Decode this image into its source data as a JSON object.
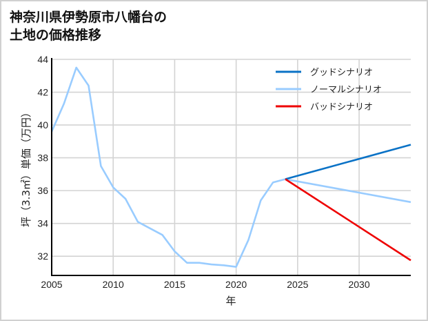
{
  "title": {
    "line1": "神奈川県伊勢原市八幡台の",
    "line2": "土地の価格推移"
  },
  "chart_data": {
    "type": "line",
    "title": "神奈川県伊勢原市八幡台の土地の価格推移",
    "xlabel": "年",
    "ylabel": "坪（3.3㎡）単価（万円）",
    "xlim": [
      2005,
      2034.2
    ],
    "ylim": [
      30.83,
      44
    ],
    "xticks": [
      2005,
      2010,
      2015,
      2020,
      2025,
      2030
    ],
    "yticks": [
      32,
      34,
      36,
      38,
      40,
      42,
      44
    ],
    "grid": true,
    "legend_position": "upper right",
    "series": [
      {
        "name": "ノーマルシナリオ",
        "role": "historical",
        "color": "#99ccff",
        "x": [
          2005,
          2006,
          2007,
          2008,
          2009,
          2010,
          2011,
          2012,
          2013,
          2014,
          2015,
          2016,
          2017,
          2018,
          2019,
          2020,
          2021,
          2022,
          2023,
          2024
        ],
        "values": [
          39.6,
          41.3,
          43.5,
          42.4,
          37.5,
          36.2,
          35.5,
          34.1,
          33.7,
          33.3,
          32.3,
          31.6,
          31.6,
          31.5,
          31.45,
          31.35,
          33.0,
          35.4,
          36.5,
          36.7
        ]
      },
      {
        "name": "グッドシナリオ",
        "color": "#0a72c6",
        "x": [
          2024,
          2034.2
        ],
        "values": [
          36.7,
          38.8
        ]
      },
      {
        "name": "ノーマルシナリオ",
        "color": "#99ccff",
        "x": [
          2024,
          2034.2
        ],
        "values": [
          36.7,
          35.3
        ]
      },
      {
        "name": "バッドシナリオ",
        "color": "#ee0000",
        "x": [
          2024,
          2034.2
        ],
        "values": [
          36.7,
          31.75
        ]
      }
    ],
    "legend": [
      {
        "label": "グッドシナリオ",
        "color": "#0a72c6"
      },
      {
        "label": "ノーマルシナリオ",
        "color": "#99ccff"
      },
      {
        "label": "バッドシナリオ",
        "color": "#ee0000"
      }
    ]
  }
}
